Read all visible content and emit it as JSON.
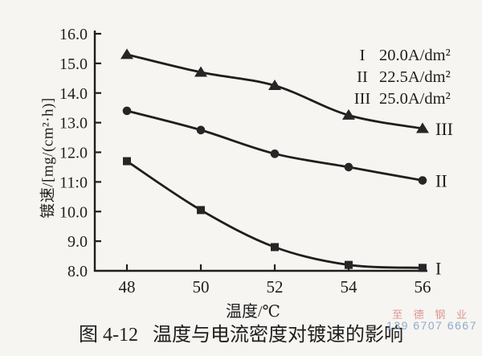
{
  "figure": {
    "background": "#f6f5f1",
    "ink": "#1e1e1e"
  },
  "chart_data": {
    "type": "line",
    "title": "",
    "xlabel": "温度/℃",
    "ylabel": "镀速/[mg/(cm²·h)]",
    "x": [
      48,
      50,
      52,
      54,
      56
    ],
    "xlim": [
      48,
      56
    ],
    "ylim": [
      8.0,
      16.0
    ],
    "grid": false,
    "legend_position": "top-right",
    "x_ticks": [
      {
        "value": 48,
        "label": "48"
      },
      {
        "value": 50,
        "label": "50"
      },
      {
        "value": 52,
        "label": "52"
      },
      {
        "value": 54,
        "label": "54"
      },
      {
        "value": 56,
        "label": "56"
      }
    ],
    "y_ticks": [
      {
        "value": 16,
        "label": "16.0"
      },
      {
        "value": 15,
        "label": "15.0"
      },
      {
        "value": 14,
        "label": "14.0"
      },
      {
        "value": 13,
        "label": "13.0"
      },
      {
        "value": 12,
        "label": "12.0"
      },
      {
        "value": 11,
        "label": "11:0"
      },
      {
        "value": 10,
        "label": "10.0"
      },
      {
        "value": 9,
        "label": "9.0"
      },
      {
        "value": 8,
        "label": "8.0"
      }
    ],
    "series": [
      {
        "name": "I",
        "current_density": "20.0A/dm²",
        "marker": "square",
        "values": [
          11.7,
          10.05,
          8.8,
          8.2,
          8.1
        ]
      },
      {
        "name": "II",
        "current_density": "22.5A/dm²",
        "marker": "circle",
        "values": [
          13.4,
          12.75,
          11.95,
          11.5,
          11.05
        ]
      },
      {
        "name": "III",
        "current_density": "25.0A/dm²",
        "marker": "triangle",
        "values": [
          15.3,
          14.7,
          14.25,
          13.25,
          12.8
        ]
      }
    ],
    "legend": [
      {
        "numeral": "I",
        "label": "20.0A/dm²"
      },
      {
        "numeral": "II",
        "label": "22.5A/dm²"
      },
      {
        "numeral": "III",
        "label": "25.0A/dm²"
      }
    ]
  },
  "caption": {
    "figure_label": "图 4-12",
    "title": "温度与电流密度对镀速的影响"
  },
  "watermark": {
    "line1": "至 德 钢 业",
    "line2": "139 6707 6667",
    "color_line1": "#dd9595",
    "color_line2": "#8fa9cf"
  }
}
